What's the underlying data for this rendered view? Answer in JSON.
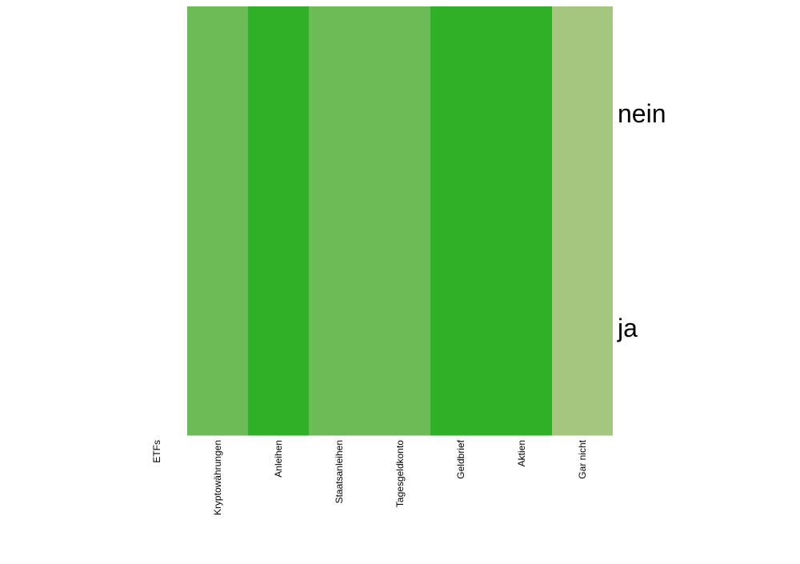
{
  "chart_data": {
    "type": "heatmap",
    "title": "",
    "xlabel": "",
    "ylabel": "",
    "x_categories": [
      "ETFs",
      "Kryptowährungen",
      "Anleihen",
      "Staatsanleihen",
      "Tagesgeldkonto",
      "Geldbrief",
      "Aktien",
      "Gar nicht"
    ],
    "y_categories": [
      "nein",
      "ja"
    ],
    "cells": [
      {
        "x": "Kryptowährungen",
        "y": "nein",
        "color": "#6cbb56"
      },
      {
        "x": "Kryptowährungen",
        "y": "ja",
        "color": "#6cbb56"
      },
      {
        "x": "Anleihen",
        "y": "nein",
        "color": "#30b027"
      },
      {
        "x": "Anleihen",
        "y": "ja",
        "color": "#30b027"
      },
      {
        "x": "Staatsanleihen",
        "y": "nein",
        "color": "#6cbb56"
      },
      {
        "x": "Staatsanleihen",
        "y": "ja",
        "color": "#6cbb56"
      },
      {
        "x": "Tagesgeldkonto",
        "y": "nein",
        "color": "#6cbb56"
      },
      {
        "x": "Tagesgeldkonto",
        "y": "ja",
        "color": "#6cbb56"
      },
      {
        "x": "Geldbrief",
        "y": "nein",
        "color": "#30b027"
      },
      {
        "x": "Geldbrief",
        "y": "ja",
        "color": "#30b027"
      },
      {
        "x": "Aktien",
        "y": "nein",
        "color": "#30b027"
      },
      {
        "x": "Aktien",
        "y": "ja",
        "color": "#30b027"
      },
      {
        "x": "Gar nicht",
        "y": "nein",
        "color": "#a5c67f"
      },
      {
        "x": "Gar nicht",
        "y": "ja",
        "color": "#a5c67f"
      }
    ],
    "grid": false,
    "legend": "none"
  }
}
